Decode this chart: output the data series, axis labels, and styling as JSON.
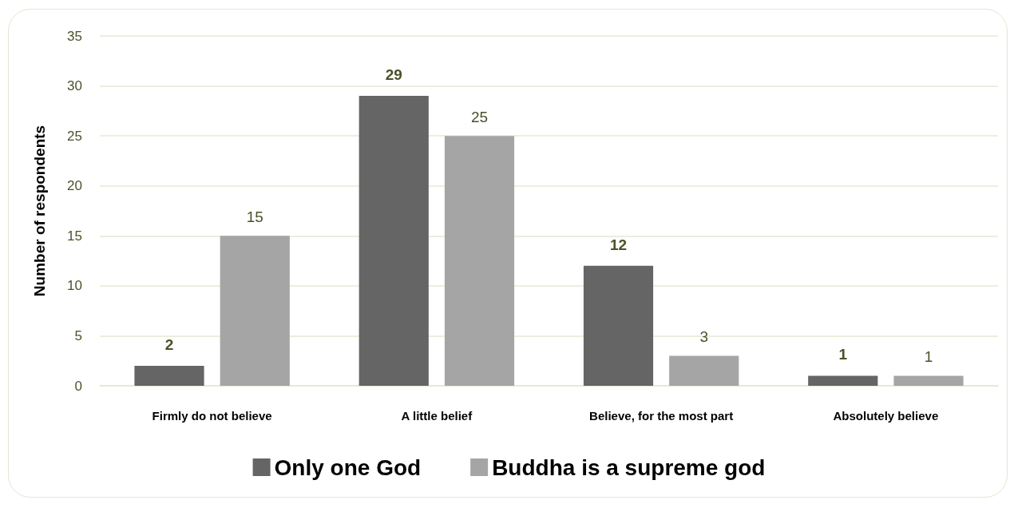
{
  "chart_data": {
    "type": "bar",
    "categories": [
      "Firmly do not believe",
      "A little belief",
      "Believe, for the most part",
      "Absolutely believe"
    ],
    "series": [
      {
        "name": "Only one God",
        "color": "#656565",
        "values": [
          2,
          29,
          12,
          1
        ]
      },
      {
        "name": "Buddha is a supreme god",
        "color": "#a5a5a5",
        "values": [
          15,
          25,
          3,
          1
        ]
      }
    ],
    "ylabel": "Number of respondents",
    "ylim": [
      0,
      35
    ],
    "yticks": [
      0,
      5,
      10,
      15,
      20,
      25,
      30,
      35
    ],
    "grid": "y",
    "legend": "bottom",
    "data_labels": true
  }
}
